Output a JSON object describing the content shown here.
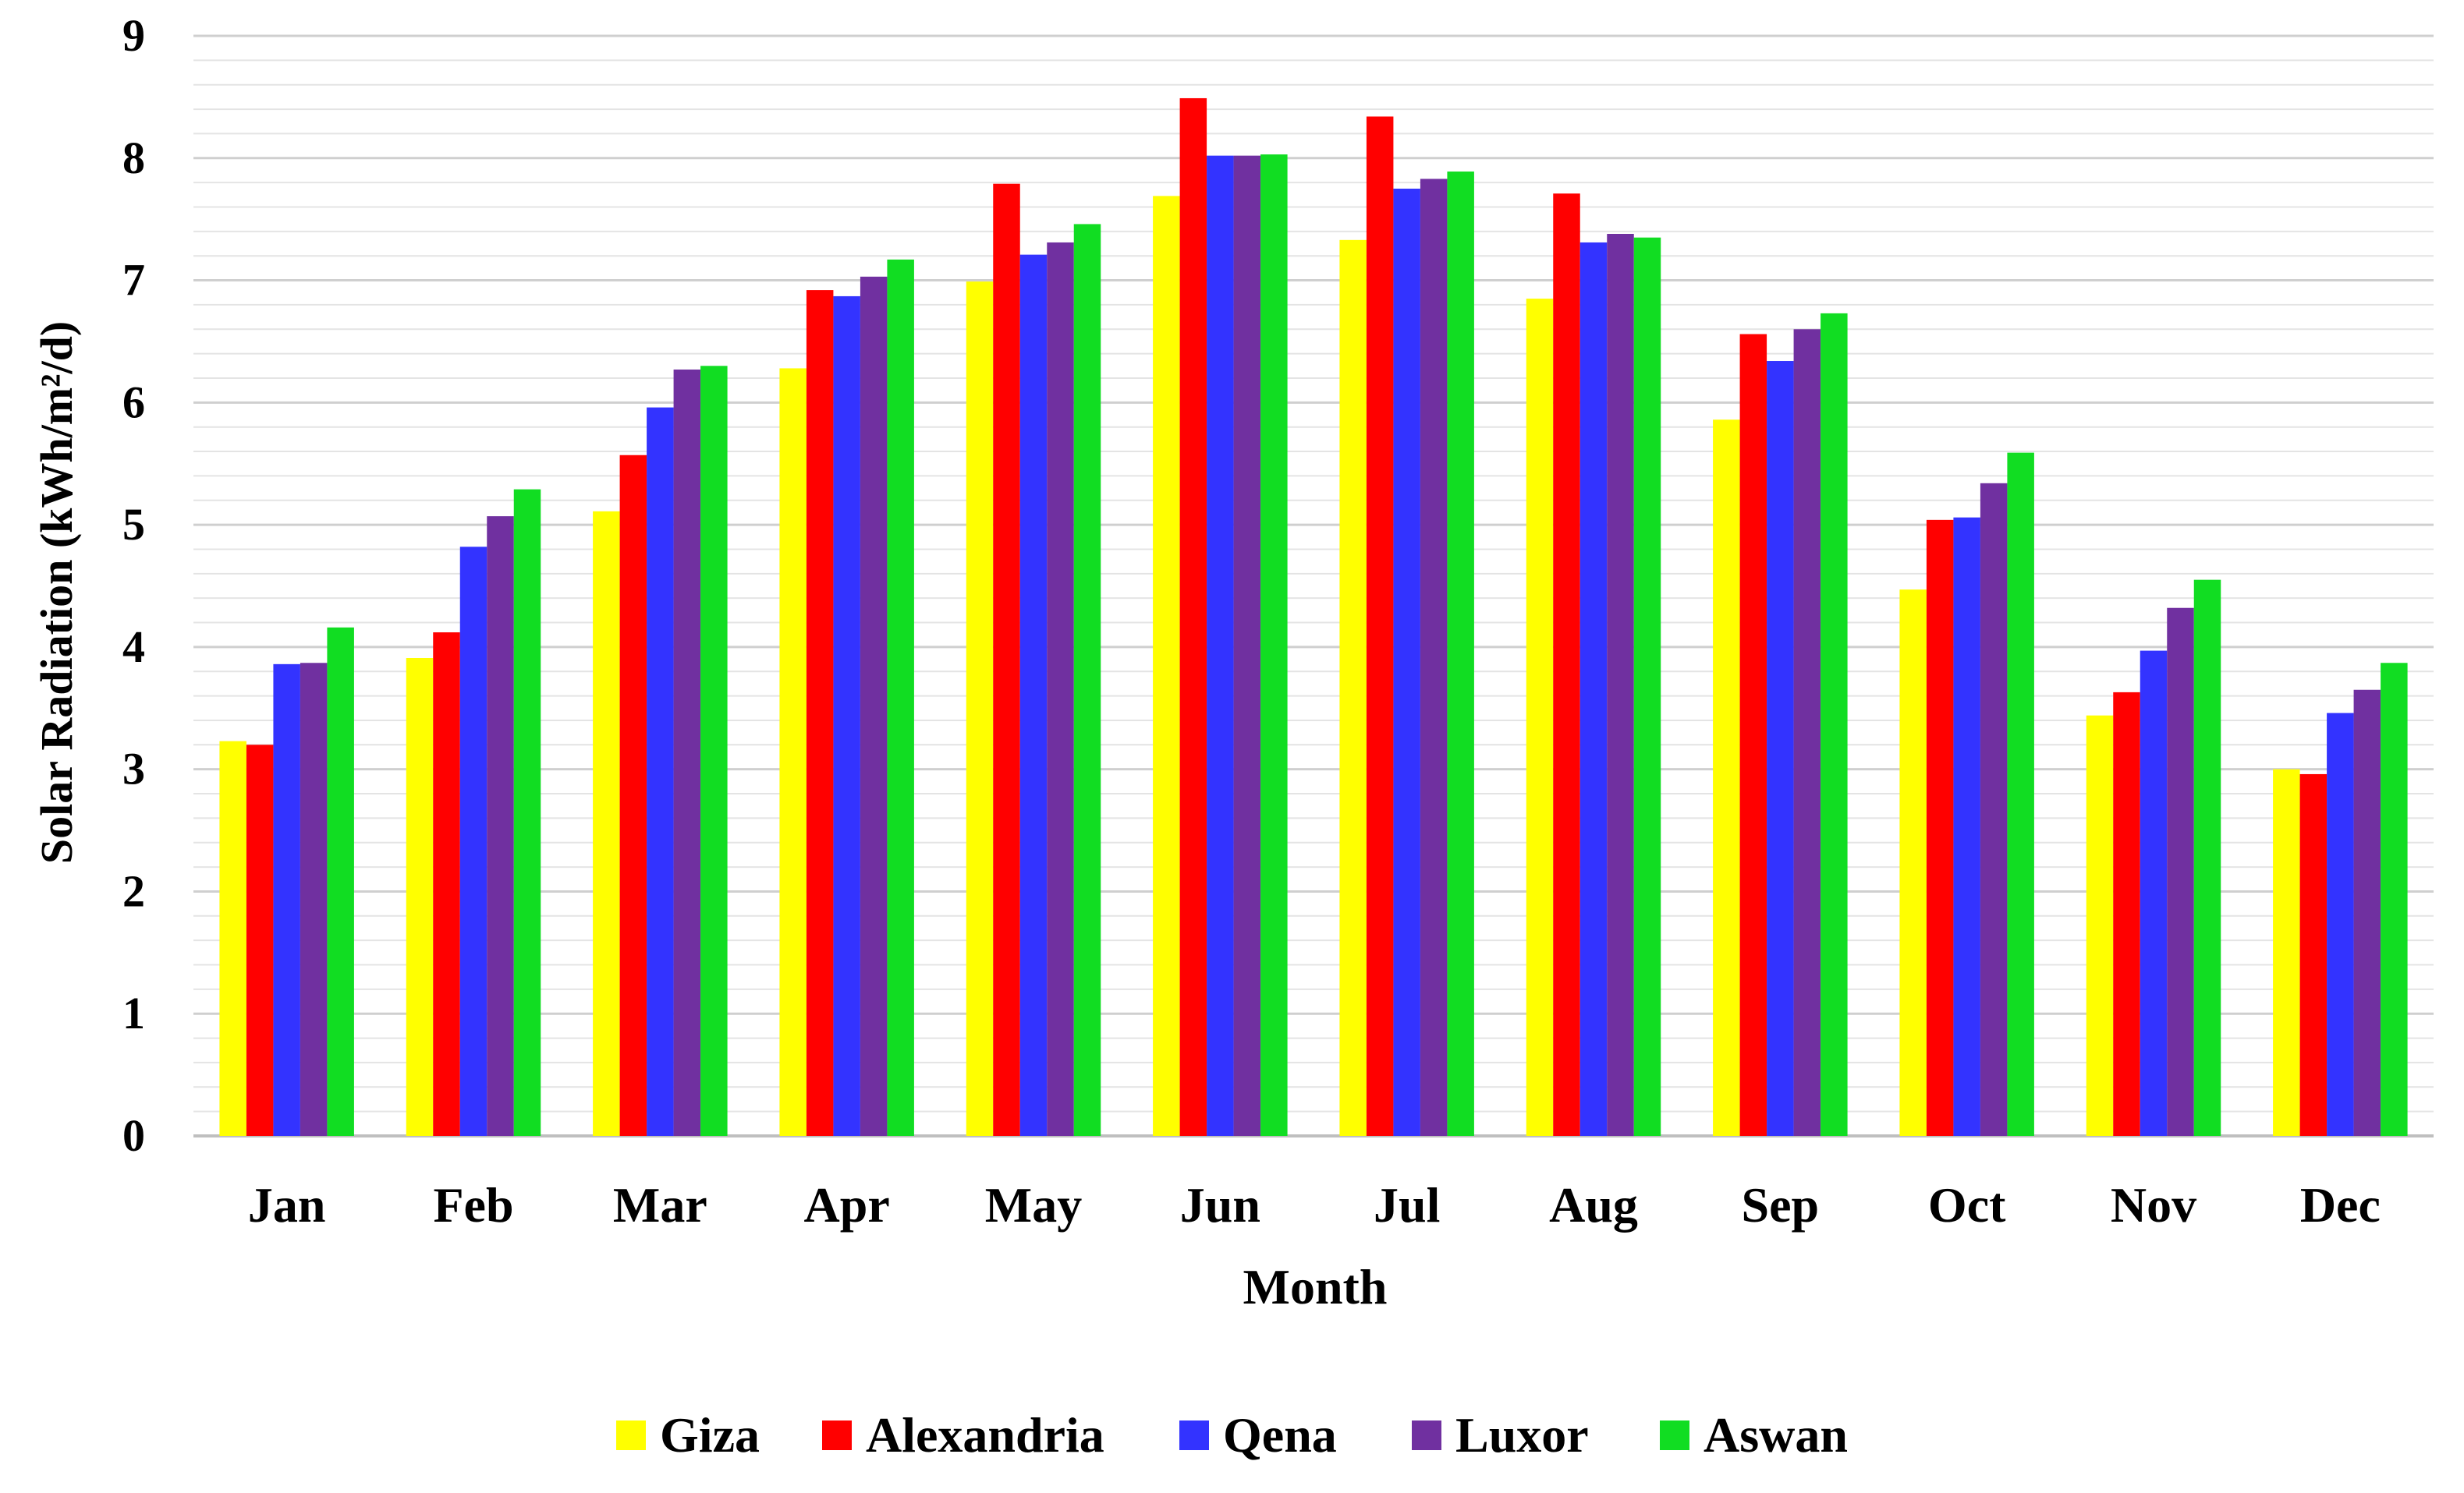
{
  "chart_data": {
    "type": "bar",
    "title": "",
    "xlabel": "Month",
    "ylabel": "Solar Radiation (kWh/m²/d)",
    "ylim": [
      0,
      9
    ],
    "yticks": [
      0,
      1,
      2,
      3,
      4,
      5,
      6,
      7,
      8,
      9
    ],
    "grid": true,
    "minor_grid": true,
    "legend_position": "bottom",
    "categories": [
      "Jan",
      "Feb",
      "Mar",
      "Apr",
      "May",
      "Jun",
      "Jul",
      "Aug",
      "Sep",
      "Oct",
      "Nov",
      "Dec"
    ],
    "series": [
      {
        "name": "Giza",
        "color": "#FFFF00",
        "values": [
          3.23,
          3.91,
          5.11,
          6.28,
          6.99,
          7.69,
          7.33,
          6.85,
          5.86,
          4.47,
          3.44,
          3.0
        ]
      },
      {
        "name": "Alexandria",
        "color": "#FF0000",
        "values": [
          3.2,
          4.12,
          5.57,
          6.92,
          7.79,
          8.49,
          8.34,
          7.71,
          6.56,
          5.04,
          3.63,
          2.96
        ]
      },
      {
        "name": "Qena",
        "color": "#3333FF",
        "values": [
          3.86,
          4.82,
          5.96,
          6.87,
          7.21,
          8.02,
          7.75,
          7.31,
          6.34,
          5.06,
          3.97,
          3.46
        ]
      },
      {
        "name": "Luxor",
        "color": "#7030A0",
        "values": [
          3.87,
          5.07,
          6.27,
          7.03,
          7.31,
          8.02,
          7.83,
          7.38,
          6.6,
          5.34,
          4.32,
          3.65
        ]
      },
      {
        "name": "Aswan",
        "color": "#11DD22",
        "values": [
          4.16,
          5.29,
          6.3,
          7.17,
          7.46,
          8.03,
          7.89,
          7.35,
          6.73,
          5.59,
          4.55,
          3.87
        ]
      }
    ]
  }
}
